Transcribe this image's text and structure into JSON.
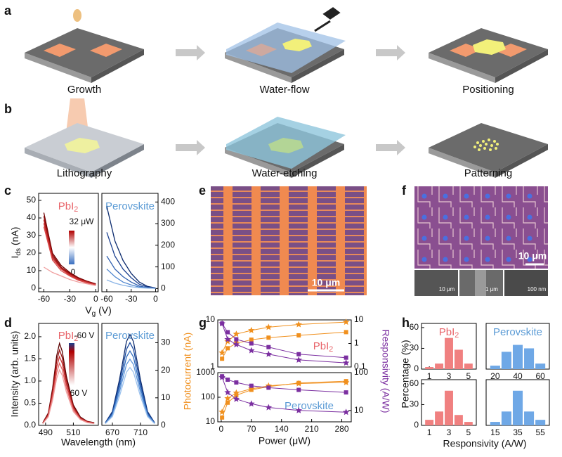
{
  "panels": {
    "labels": [
      "a",
      "b",
      "c",
      "d",
      "e",
      "f",
      "g",
      "h"
    ]
  },
  "schematic": {
    "row_a": [
      "Growth",
      "Water-flow",
      "Positioning"
    ],
    "row_b": [
      "Lithography",
      "Water-etching",
      "Patterning"
    ]
  },
  "micrographs": {
    "e_scale_bar": "10 μm",
    "f_scale_bar": "10 μm",
    "f_inset_scale_bars": [
      "10 μm",
      "1 μm",
      "100 nm"
    ]
  },
  "chart_data": [
    {
      "type": "line",
      "title": {
        "text": "PbI",
        "sub": "2"
      },
      "title_color": "#e8646a",
      "y_label": {
        "text": "I",
        "sub": "ds",
        "rest": " (nA)"
      },
      "x_label": {
        "text": "V",
        "sub": "g",
        "rest": " (V)"
      },
      "colorbar_labels": [
        "32 μW",
        "0"
      ],
      "x": [
        -60,
        -50,
        -40,
        -30,
        -20,
        -10,
        0
      ],
      "xlim": [
        -66,
        3
      ],
      "xticks": [
        -60,
        -30,
        0
      ],
      "ylim": [
        -2,
        54
      ],
      "yticks": [
        0,
        10,
        20,
        30,
        40,
        50
      ],
      "series": [
        {
          "color": "#6e0000",
          "values": [
            43,
            20,
            13,
            9,
            6,
            4,
            2.5
          ]
        },
        {
          "color": "#8e0a0a",
          "values": [
            41,
            19,
            12,
            8.5,
            5.5,
            4,
            2.5
          ]
        },
        {
          "color": "#b01818",
          "values": [
            39,
            18,
            11.5,
            8,
            5.5,
            3.5,
            2
          ]
        },
        {
          "color": "#c83030",
          "values": [
            37,
            17,
            11,
            7.5,
            5,
            3.5,
            2
          ]
        },
        {
          "color": "#d84848",
          "values": [
            35,
            16,
            10,
            7,
            4.5,
            3,
            2
          ]
        },
        {
          "color": "#f0a0a0",
          "values": [
            12,
            9,
            7,
            5,
            3.5,
            2.5,
            1.5
          ]
        }
      ]
    },
    {
      "type": "line",
      "title": "Perovskite",
      "title_color": "#5b9bd5",
      "x": [
        -60,
        -50,
        -40,
        -30,
        -20,
        -10,
        0
      ],
      "xlim": [
        -66,
        3
      ],
      "xticks": [
        -60,
        -30,
        0
      ],
      "y2lim": [
        -15,
        440
      ],
      "y2ticks": [
        0,
        100,
        200,
        300,
        400
      ],
      "series": [
        {
          "color": "#0b2a6e",
          "axis": "y2",
          "values": [
            380,
            220,
            130,
            70,
            30,
            10,
            3
          ]
        },
        {
          "color": "#1a3f8f",
          "axis": "y2",
          "values": [
            260,
            150,
            90,
            50,
            20,
            7,
            2
          ]
        },
        {
          "color": "#2f5fb0",
          "axis": "y2",
          "values": [
            150,
            90,
            55,
            30,
            12,
            4,
            1
          ]
        },
        {
          "color": "#4f86cf",
          "axis": "y2",
          "values": [
            90,
            55,
            30,
            17,
            7,
            3,
            1
          ]
        },
        {
          "color": "#8ab4e6",
          "axis": "y2",
          "values": [
            40,
            25,
            15,
            8,
            4,
            2,
            1
          ]
        }
      ]
    },
    {
      "type": "line",
      "title": {
        "text": "PbI",
        "sub": "2"
      },
      "title_color": "#e8646a",
      "y_label": "Intensity (arb. units)",
      "x_label": "Wavelength (nm)",
      "colorbar_labels": [
        "-60 V",
        "60 V"
      ],
      "x": [
        488,
        492,
        495,
        498,
        500,
        502,
        505,
        510,
        515,
        520,
        525
      ],
      "xlim": [
        485,
        528
      ],
      "xticks": [
        490,
        510
      ],
      "ylim": [
        0,
        2.3
      ],
      "yticks": [
        {
          "value": 0,
          "label": "0.0"
        },
        {
          "value": 0.5,
          "label": "0.5"
        },
        {
          "value": 1,
          "label": "1.0"
        },
        {
          "value": 1.5,
          "label": "1.5"
        },
        {
          "value": 2,
          "label": "2.0"
        }
      ],
      "series": [
        {
          "color": "#5a0000",
          "values": [
            0.06,
            0.28,
            0.83,
            1.57,
            1.85,
            1.67,
            1.11,
            0.46,
            0.19,
            0.09,
            0.06
          ]
        },
        {
          "color": "#9a1010",
          "values": [
            0.05,
            0.26,
            0.77,
            1.45,
            1.7,
            1.53,
            1.02,
            0.43,
            0.17,
            0.09,
            0.05
          ]
        },
        {
          "color": "#c83030",
          "values": [
            0.05,
            0.23,
            0.7,
            1.32,
            1.55,
            1.4,
            0.93,
            0.39,
            0.16,
            0.08,
            0.05
          ]
        },
        {
          "color": "#e06464",
          "values": [
            0.04,
            0.21,
            0.63,
            1.19,
            1.4,
            1.26,
            0.84,
            0.35,
            0.14,
            0.07,
            0.04
          ]
        },
        {
          "color": "#f0a0a0",
          "values": [
            0.04,
            0.19,
            0.56,
            1.06,
            1.25,
            1.13,
            0.75,
            0.31,
            0.13,
            0.06,
            0.04
          ]
        }
      ]
    },
    {
      "type": "line",
      "title": "Perovskite",
      "title_color": "#5b9bd5",
      "x": [
        660,
        670,
        680,
        690,
        695,
        700,
        710,
        720,
        730
      ],
      "xlim": [
        655,
        735
      ],
      "xticks": [
        670,
        710
      ],
      "y2lim": [
        0,
        37
      ],
      "y2ticks": [
        0,
        10,
        20,
        30
      ],
      "series": [
        {
          "color": "#0b2a6e",
          "axis": "y2",
          "values": [
            1,
            5,
            16.5,
            30.4,
            33,
            30.4,
            16.5,
            5,
            1
          ]
        },
        {
          "color": "#1a4a9f",
          "axis": "y2",
          "values": [
            0.9,
            4.5,
            15,
            27.6,
            30,
            27.6,
            15,
            4.5,
            0.9
          ]
        },
        {
          "color": "#3470c0",
          "axis": "y2",
          "values": [
            0.8,
            4.1,
            13.5,
            24.8,
            27,
            24.8,
            13.5,
            4.1,
            0.8
          ]
        },
        {
          "color": "#5e96dc",
          "axis": "y2",
          "values": [
            0.7,
            3.6,
            12,
            22.1,
            24,
            22.1,
            12,
            3.6,
            0.7
          ]
        },
        {
          "color": "#9cc2ee",
          "axis": "y2",
          "values": [
            0.6,
            3.2,
            10.5,
            19.3,
            21,
            19.3,
            10.5,
            3.2,
            0.6
          ]
        }
      ]
    },
    {
      "type": "line",
      "title": {
        "text": "PbI",
        "sub": "2"
      },
      "title_color": "#e8646a",
      "y_label": "Photocurrent (nA)",
      "y_label_color": "#f0901e",
      "y2_label": "Responsivity (A/W)",
      "y2_label_color": "#7b2fa0",
      "x": [
        2,
        15,
        35,
        70,
        110,
        180,
        290
      ],
      "xlim": [
        -8,
        302
      ],
      "ylog": true,
      "ylim": [
        1,
        10
      ],
      "yticks": [
        1,
        10
      ],
      "y2log": true,
      "y2lim": [
        0.1,
        10
      ],
      "y2ticks": [
        0.1,
        1,
        10
      ],
      "series": [
        {
          "color": "#f0901e",
          "marker": "square",
          "values": [
            1.5,
            2.5,
            3.2,
            3.8,
            4.2,
            4.7,
            5.5
          ]
        },
        {
          "color": "#f0901e",
          "marker": "star",
          "values": [
            2,
            3.5,
            5,
            6,
            7,
            8,
            9
          ]
        },
        {
          "color": "#7b2fa0",
          "marker": "square",
          "axis": "y2",
          "values": [
            7,
            3,
            1.5,
            1,
            0.7,
            0.35,
            0.25
          ]
        },
        {
          "color": "#7b2fa0",
          "marker": "star",
          "axis": "y2",
          "values": [
            7,
            1.5,
            0.9,
            0.5,
            0.35,
            0.2,
            0.15
          ]
        }
      ]
    },
    {
      "type": "line",
      "title": "Perovskite",
      "title_color": "#5b9bd5",
      "x_label": "Power (μW)",
      "x": [
        2,
        15,
        35,
        70,
        110,
        180,
        290
      ],
      "xlim": [
        -8,
        302
      ],
      "xticks": [
        0,
        70,
        140,
        210,
        280
      ],
      "ylog": true,
      "ylim": [
        10,
        1000
      ],
      "yticks": [
        10,
        100,
        1000
      ],
      "y2log": true,
      "y2lim": [
        5,
        100
      ],
      "y2ticks": [
        10,
        100
      ],
      "series": [
        {
          "color": "#f0901e",
          "marker": "square",
          "values": [
            15,
            60,
            120,
            200,
            270,
            380,
            450
          ]
        },
        {
          "color": "#f0901e",
          "marker": "star",
          "values": [
            25,
            90,
            150,
            220,
            290,
            360,
            400
          ]
        },
        {
          "color": "#7b2fa0",
          "marker": "square",
          "axis": "y2",
          "values": [
            80,
            65,
            55,
            45,
            40,
            35,
            30
          ]
        },
        {
          "color": "#7b2fa0",
          "marker": "star",
          "axis": "y2",
          "values": [
            75,
            30,
            20,
            15,
            12,
            10,
            9
          ]
        }
      ]
    },
    {
      "type": "histogram",
      "title": {
        "text": "PbI",
        "sub": "2"
      },
      "title_color": "#e8646a",
      "y_label": "Percentage (%)",
      "bins": [
        0.5,
        1.5,
        2.5,
        3.5,
        4.5,
        5.5
      ],
      "values": [
        3,
        8,
        45,
        28,
        8
      ],
      "color": "#f08080",
      "xlim": [
        0.2,
        5.8
      ],
      "xticks": [
        1,
        3,
        5
      ],
      "ylim": [
        0,
        66
      ],
      "yticks": [
        0,
        30,
        60
      ]
    },
    {
      "type": "histogram",
      "title": "Perovskite",
      "title_color": "#5b9bd5",
      "bins": [
        15,
        25,
        35,
        45,
        55,
        65
      ],
      "values": [
        5,
        25,
        35,
        30,
        8
      ],
      "color": "#6fa8e6",
      "xlim": [
        12,
        68
      ],
      "xticks": [
        20,
        40,
        60
      ],
      "ylim": [
        0,
        66
      ]
    },
    {
      "type": "histogram",
      "x_label": "Responsivity (A/W)",
      "bins": [
        0.5,
        1.5,
        2.5,
        3.5,
        4.5,
        5.5
      ],
      "values": [
        8,
        20,
        50,
        15,
        5
      ],
      "color": "#f08080",
      "xlim": [
        0.2,
        5.8
      ],
      "xticks": [
        1,
        3,
        5
      ],
      "ylim": [
        0,
        66
      ],
      "yticks": [
        0,
        30,
        60
      ]
    },
    {
      "type": "histogram",
      "bins": [
        10,
        20,
        30,
        40,
        50,
        60
      ],
      "values": [
        5,
        20,
        50,
        20,
        8
      ],
      "color": "#6fa8e6",
      "xlim": [
        7,
        63
      ],
      "xticks": [
        15,
        35,
        55
      ],
      "ylim": [
        0,
        66
      ]
    }
  ]
}
